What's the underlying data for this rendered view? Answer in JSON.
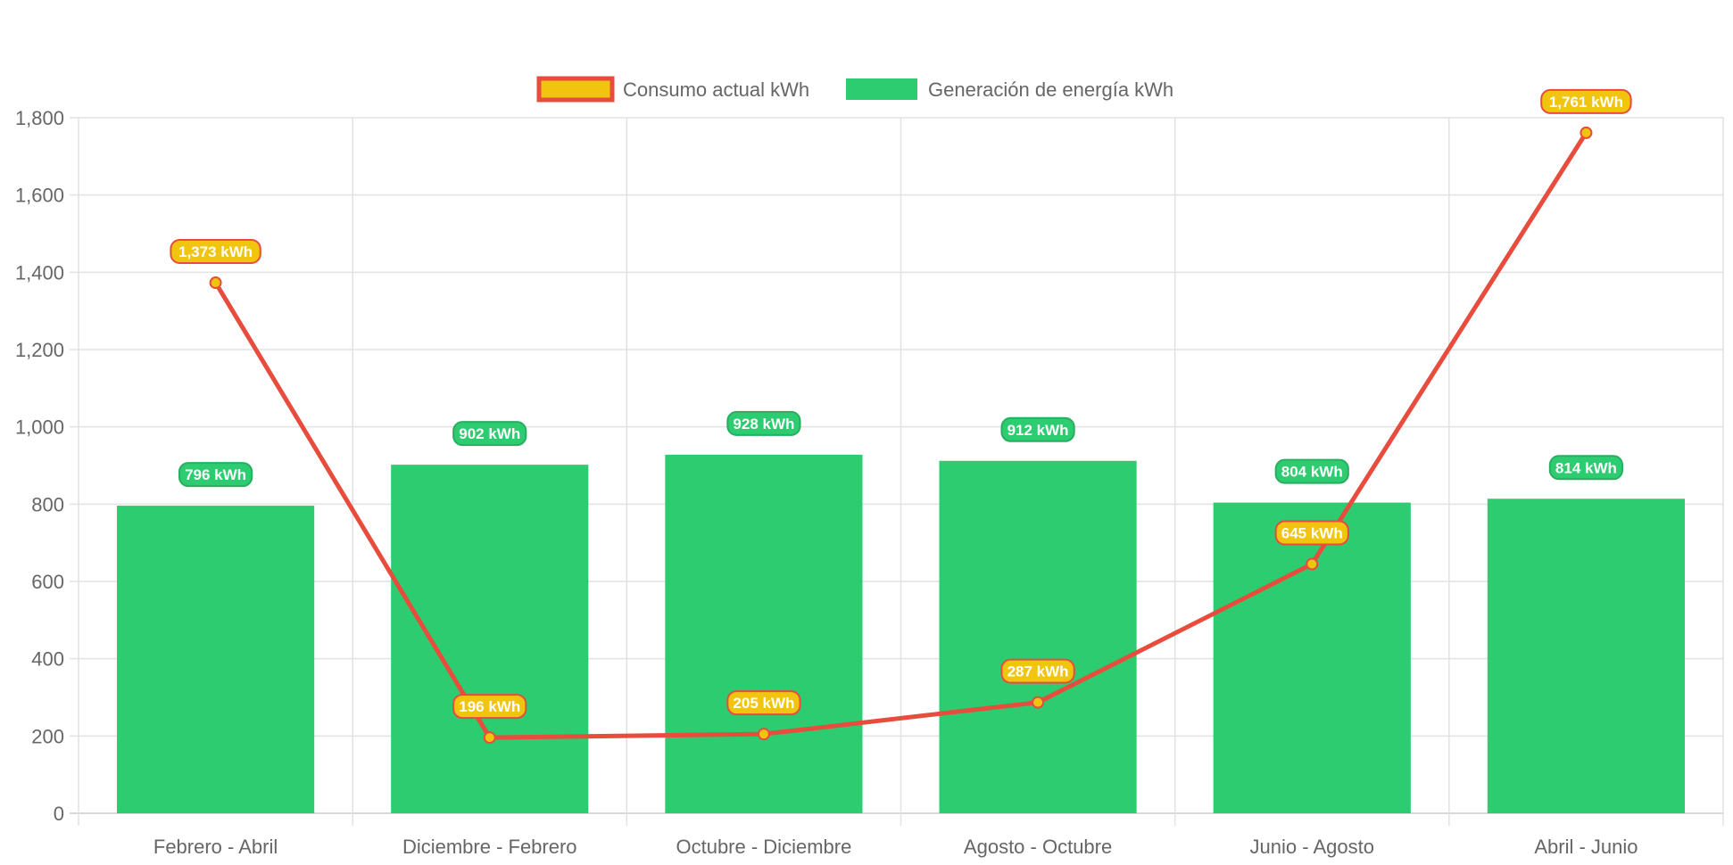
{
  "chart_data": {
    "type": "bar",
    "title": "",
    "xlabel": "",
    "ylabel": "",
    "ylim": [
      0,
      1800
    ],
    "yticks": [
      0,
      200,
      400,
      600,
      800,
      1000,
      1200,
      1400,
      1600,
      1800
    ],
    "ytick_labels": [
      "0",
      "200",
      "400",
      "600",
      "800",
      "1,000",
      "1,200",
      "1,400",
      "1,600",
      "1,800"
    ],
    "grid": true,
    "legend_position": "top-center",
    "categories": [
      "Febrero - Abril",
      "Diciembre - Febrero",
      "Octubre - Diciembre",
      "Agosto - Octubre",
      "Junio - Agosto",
      "Abril - Junio"
    ],
    "series": [
      {
        "name": "Consumo actual kWh",
        "type": "line",
        "values": [
          1373,
          196,
          205,
          287,
          645,
          1761
        ],
        "data_labels": [
          "1,373 kWh",
          "196 kWh",
          "205 kWh",
          "287 kWh",
          "645 kWh",
          "1,761 kWh"
        ],
        "color": "#e74c3c",
        "fill_color": "#f1c40f"
      },
      {
        "name": "Generación de energía kWh",
        "type": "bar",
        "values": [
          796,
          902,
          928,
          912,
          804,
          814
        ],
        "data_labels": [
          "796 kWh",
          "902 kWh",
          "928 kWh",
          "912 kWh",
          "804 kWh",
          "814 kWh"
        ],
        "color": "#2ecc71",
        "border_color": "#27ae60"
      }
    ]
  }
}
